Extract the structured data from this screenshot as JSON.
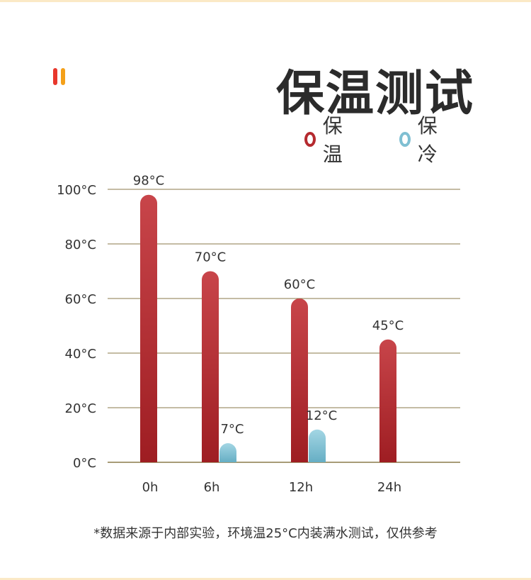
{
  "page": {
    "title": "保温测试",
    "footnote": "*数据来源于内部实验，环境温25°C内装满水测试，仅供参考",
    "deco_colors": [
      "#e8372c",
      "#f4a019"
    ]
  },
  "chart_data": {
    "type": "bar",
    "categories": [
      "0h",
      "6h",
      "12h",
      "24h"
    ],
    "series": [
      {
        "name": "保温",
        "color": "#b52a2f",
        "values": [
          98,
          70,
          60,
          45
        ],
        "labels": [
          "98°C",
          "70°C",
          "60°C",
          "45°C"
        ]
      },
      {
        "name": "保冷",
        "color": "#7fbfd2",
        "values": [
          null,
          7,
          12,
          null
        ],
        "labels": [
          "",
          "7°C",
          "12°C",
          ""
        ]
      }
    ],
    "yticks": [
      {
        "value": 0,
        "label": "0°C"
      },
      {
        "value": 20,
        "label": "20°C"
      },
      {
        "value": 40,
        "label": "40°C"
      },
      {
        "value": 60,
        "label": "60°C"
      },
      {
        "value": 80,
        "label": "80°C"
      },
      {
        "value": 100,
        "label": "100°C"
      }
    ],
    "ylim": [
      0,
      100
    ],
    "grid": true,
    "legend_position": "top-right",
    "gridline_color": "#8a7a4a"
  }
}
